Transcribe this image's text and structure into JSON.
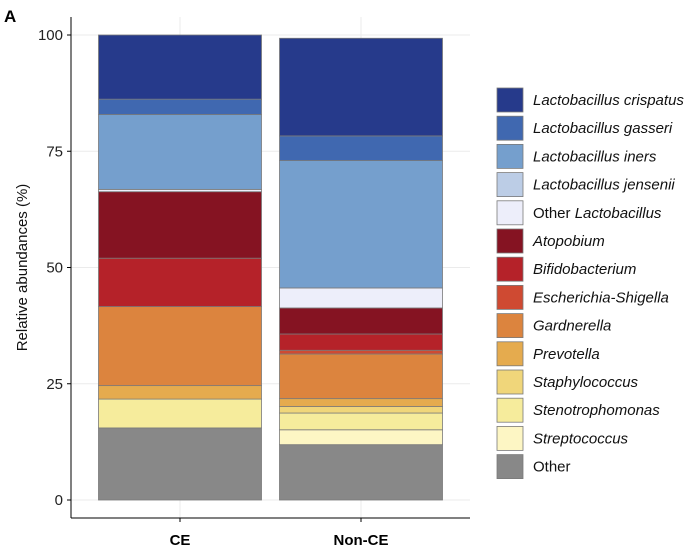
{
  "panel_label": "A",
  "chart_data": {
    "type": "bar",
    "stacked": true,
    "categories": [
      "CE",
      "Non-CE"
    ],
    "ylabel": "Relative abundances (%)",
    "xlabel": "",
    "ylim": [
      0,
      100
    ],
    "yticks": [
      "0",
      "25",
      "50",
      "75",
      "100"
    ],
    "grid": true,
    "legend_position": "right",
    "series": [
      {
        "name": "Other",
        "italic": false,
        "color": "#888888",
        "values": [
          15.5,
          11.9
        ]
      },
      {
        "name": "Streptococcus",
        "italic": true,
        "color": "#fdf6c4",
        "values": [
          0,
          3.2
        ]
      },
      {
        "name": "Stenotrophomonas",
        "italic": true,
        "color": "#f6ec9c",
        "values": [
          6.2,
          3.6
        ]
      },
      {
        "name": "Staphylococcus",
        "italic": true,
        "color": "#f0d67a",
        "values": [
          0,
          1.4
        ]
      },
      {
        "name": "Prevotella",
        "italic": true,
        "color": "#e5ab4e",
        "values": [
          2.9,
          1.7
        ]
      },
      {
        "name": "Gardnerella",
        "italic": true,
        "color": "#dc843e",
        "values": [
          17.0,
          9.6
        ]
      },
      {
        "name": "Escherichia-Shigella",
        "italic": true,
        "color": "#cf4a32",
        "values": [
          0,
          0.8
        ]
      },
      {
        "name": "Bifidobacterium",
        "italic": true,
        "color": "#b52229",
        "values": [
          10.4,
          3.5
        ]
      },
      {
        "name": "Atopobium",
        "italic": true,
        "color": "#851322",
        "values": [
          14.3,
          5.6
        ]
      },
      {
        "name": "Other Lactobacillus",
        "italic": false,
        "italic_part": "Lactobacillus",
        "color": "#edeefa",
        "values": [
          0.5,
          4.3
        ]
      },
      {
        "name": "Lactobacillus jensenii",
        "italic": true,
        "color": "#bccde6",
        "values": [
          0,
          0
        ]
      },
      {
        "name": "Lactobacillus iners",
        "italic": true,
        "color": "#759fcd",
        "values": [
          16.1,
          27.4
        ]
      },
      {
        "name": "Lactobacillus gasseri",
        "italic": true,
        "color": "#4068b0",
        "values": [
          3.3,
          5.3
        ]
      },
      {
        "name": "Lactobacillus crispatus",
        "italic": true,
        "color": "#263a8b",
        "values": [
          13.8,
          21.0
        ]
      }
    ]
  }
}
